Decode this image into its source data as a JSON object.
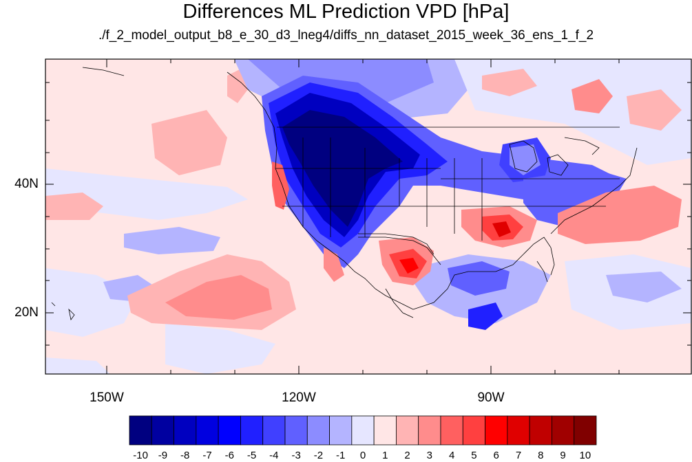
{
  "title": "Differences ML Prediction VPD [hPa]",
  "subtitle": "./f_2_model_output_b8_e_30_d3_lneg4/diffs_nn_dataset_2015_week_36_ens_1_f_2",
  "map": {
    "lat_labels": [
      "40N",
      "20N"
    ],
    "lon_labels": [
      "150W",
      "120W",
      "90W"
    ]
  },
  "colorbar": {
    "labels": [
      "-10",
      "-9",
      "-8",
      "-7",
      "-6",
      "-5",
      "-4",
      "-3",
      "-2",
      "-1",
      "0",
      "1",
      "2",
      "3",
      "4",
      "5",
      "6",
      "7",
      "8",
      "9",
      "10"
    ],
    "colors": [
      "#000080",
      "#0000a0",
      "#0000c0",
      "#0000e0",
      "#0000ff",
      "#2020ff",
      "#4040ff",
      "#6060ff",
      "#8c8cff",
      "#b4b4ff",
      "#e6e6ff",
      "#ffe6e6",
      "#ffb4b4",
      "#ff8c8c",
      "#ff6060",
      "#ff4040",
      "#ff0000",
      "#e00000",
      "#c00000",
      "#a00000",
      "#800000"
    ]
  }
}
